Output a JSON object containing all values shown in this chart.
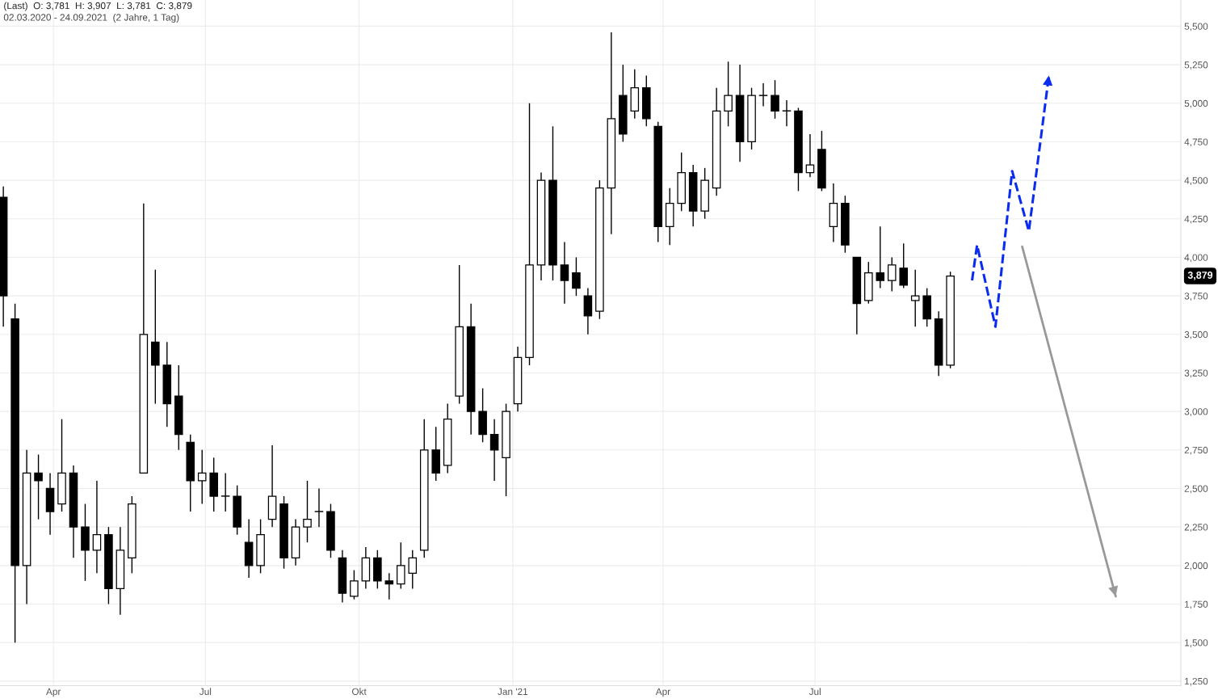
{
  "chart_data": {
    "type": "candlestick",
    "title": "(Last)  O: 3,781  H: 3,907  L: 3,781  C: 3,879",
    "subtitle": "02.03.2020 - 24.09.2021  (2 Jahre, 1 Tag)",
    "x": [
      "2020-03-02",
      "2020-03-09",
      "2020-03-16",
      "2020-03-23",
      "2020-03-30",
      "2020-04-06",
      "2020-04-13",
      "2020-04-20",
      "2020-04-27",
      "2020-05-04",
      "2020-05-11",
      "2020-05-18",
      "2020-05-25",
      "2020-06-01",
      "2020-06-08",
      "2020-06-15",
      "2020-06-22",
      "2020-06-29",
      "2020-07-06",
      "2020-07-13",
      "2020-07-20",
      "2020-07-27",
      "2020-08-03",
      "2020-08-10",
      "2020-08-17",
      "2020-08-24",
      "2020-08-31",
      "2020-09-07",
      "2020-09-14",
      "2020-09-21",
      "2020-09-28",
      "2020-10-05",
      "2020-10-12",
      "2020-10-19",
      "2020-10-26",
      "2020-11-02",
      "2020-11-09",
      "2020-11-16",
      "2020-11-23",
      "2020-11-30",
      "2020-12-07",
      "2020-12-14",
      "2020-12-21",
      "2020-12-28",
      "2021-01-04",
      "2021-01-11",
      "2021-01-18",
      "2021-01-25",
      "2021-02-01",
      "2021-02-08",
      "2021-02-15",
      "2021-02-22",
      "2021-03-01",
      "2021-03-08",
      "2021-03-15",
      "2021-03-22",
      "2021-03-29",
      "2021-04-05",
      "2021-04-12",
      "2021-04-19",
      "2021-04-26",
      "2021-05-03",
      "2021-05-10",
      "2021-05-17",
      "2021-05-24",
      "2021-05-31",
      "2021-06-07",
      "2021-06-14",
      "2021-06-21",
      "2021-06-28",
      "2021-07-05",
      "2021-07-12",
      "2021-07-19",
      "2021-07-26",
      "2021-08-02",
      "2021-08-09",
      "2021-08-16",
      "2021-08-23",
      "2021-08-30",
      "2021-09-06",
      "2021-09-13",
      "2021-09-20"
    ],
    "ohlc": [
      [
        4390,
        4460,
        3550,
        3750
      ],
      [
        3600,
        3700,
        1500,
        2000
      ],
      [
        2000,
        2750,
        1750,
        2600
      ],
      [
        2600,
        2720,
        2300,
        2550
      ],
      [
        2500,
        2600,
        2200,
        2350
      ],
      [
        2400,
        2950,
        2350,
        2600
      ],
      [
        2600,
        2650,
        2050,
        2250
      ],
      [
        2250,
        2400,
        1900,
        2100
      ],
      [
        2100,
        2550,
        1950,
        2200
      ],
      [
        2200,
        2250,
        1750,
        1850
      ],
      [
        1850,
        2250,
        1680,
        2100
      ],
      [
        2050,
        2450,
        1950,
        2400
      ],
      [
        2600,
        4350,
        2600,
        3500
      ],
      [
        3450,
        3920,
        3050,
        3300
      ],
      [
        3300,
        3450,
        2900,
        3050
      ],
      [
        3100,
        3300,
        2750,
        2850
      ],
      [
        2800,
        2850,
        2350,
        2550
      ],
      [
        2550,
        2750,
        2400,
        2600
      ],
      [
        2600,
        2700,
        2350,
        2450
      ],
      [
        2450,
        2600,
        2350,
        2450
      ],
      [
        2450,
        2520,
        2200,
        2250
      ],
      [
        2150,
        2300,
        1920,
        2000
      ],
      [
        2000,
        2300,
        1950,
        2200
      ],
      [
        2300,
        2780,
        2250,
        2450
      ],
      [
        2400,
        2450,
        1980,
        2050
      ],
      [
        2050,
        2300,
        2000,
        2250
      ],
      [
        2250,
        2550,
        2150,
        2300
      ],
      [
        2350,
        2500,
        2250,
        2350
      ],
      [
        2350,
        2400,
        2050,
        2100
      ],
      [
        2050,
        2100,
        1760,
        1820
      ],
      [
        1800,
        1970,
        1780,
        1900
      ],
      [
        1900,
        2120,
        1850,
        2050
      ],
      [
        2050,
        2100,
        1850,
        1900
      ],
      [
        1900,
        1950,
        1780,
        1880
      ],
      [
        1880,
        2150,
        1850,
        2000
      ],
      [
        1950,
        2100,
        1850,
        2050
      ],
      [
        2100,
        2950,
        2050,
        2750
      ],
      [
        2750,
        2900,
        2550,
        2600
      ],
      [
        2650,
        3050,
        2600,
        2950
      ],
      [
        3100,
        3950,
        3050,
        3550
      ],
      [
        3550,
        3700,
        2850,
        3000
      ],
      [
        3000,
        3150,
        2800,
        2850
      ],
      [
        2850,
        2950,
        2550,
        2750
      ],
      [
        2700,
        3050,
        2450,
        3000
      ],
      [
        3050,
        3420,
        3000,
        3350
      ],
      [
        3350,
        5000,
        3300,
        3950
      ],
      [
        3950,
        4550,
        3850,
        4500
      ],
      [
        4500,
        4850,
        3850,
        3950
      ],
      [
        3950,
        4100,
        3700,
        3850
      ],
      [
        3900,
        4000,
        3750,
        3800
      ],
      [
        3750,
        3800,
        3500,
        3620
      ],
      [
        3650,
        4500,
        3600,
        4450
      ],
      [
        4450,
        5460,
        4150,
        4900
      ],
      [
        5050,
        5250,
        4750,
        4800
      ],
      [
        4950,
        5220,
        4900,
        5100
      ],
      [
        5100,
        5180,
        4850,
        4900
      ],
      [
        4850,
        4880,
        4100,
        4200
      ],
      [
        4200,
        4450,
        4080,
        4350
      ],
      [
        4350,
        4680,
        4300,
        4550
      ],
      [
        4550,
        4600,
        4200,
        4300
      ],
      [
        4300,
        4580,
        4250,
        4500
      ],
      [
        4450,
        5100,
        4400,
        4950
      ],
      [
        4950,
        5270,
        4850,
        5050
      ],
      [
        5050,
        5250,
        4620,
        4750
      ],
      [
        4750,
        5100,
        4700,
        5050
      ],
      [
        5050,
        5130,
        4980,
        5050
      ],
      [
        5050,
        5150,
        4900,
        4950
      ],
      [
        4950,
        5020,
        4850,
        4950
      ],
      [
        4950,
        4970,
        4430,
        4550
      ],
      [
        4550,
        4800,
        4520,
        4600
      ],
      [
        4700,
        4820,
        4430,
        4450
      ],
      [
        4200,
        4480,
        4100,
        4350
      ],
      [
        4350,
        4400,
        4030,
        4080
      ],
      [
        4000,
        4000,
        3500,
        3700
      ],
      [
        3720,
        3970,
        3700,
        3900
      ],
      [
        3900,
        4200,
        3800,
        3850
      ],
      [
        3850,
        4000,
        3780,
        3950
      ],
      [
        3930,
        4090,
        3800,
        3820
      ],
      [
        3720,
        3920,
        3550,
        3750
      ],
      [
        3750,
        3800,
        3550,
        3600
      ],
      [
        3600,
        3650,
        3230,
        3300
      ],
      [
        3300,
        3907,
        3280,
        3879
      ]
    ],
    "series": [
      {
        "type": "line",
        "color": "#0a2cf0",
        "line_style": "dashed",
        "x": [
          "2021-10-03",
          "2021-10-06",
          "2021-10-17",
          "2021-10-27",
          "2021-11-06",
          "2021-11-18"
        ],
        "values": [
          3850,
          4080,
          3550,
          4560,
          4170,
          5180
        ]
      },
      {
        "type": "line",
        "color": "#999999",
        "line_style": "solid",
        "x": [
          "2021-11-02",
          "2021-12-28"
        ],
        "values": [
          4070,
          1800
        ]
      }
    ],
    "annotations": [
      "3,879"
    ],
    "xlim": [
      "2020-02-29",
      "2022-02-05"
    ],
    "xticks": [
      {
        "value": "2020-04-01",
        "label": "Apr"
      },
      {
        "value": "2020-07-01",
        "label": "Jul"
      },
      {
        "value": "2020-10-01",
        "label": "Okt"
      },
      {
        "value": "2021-01-01",
        "label": "Jan '21"
      },
      {
        "value": "2021-04-01",
        "label": "Apr"
      },
      {
        "value": "2021-07-01",
        "label": "Jul"
      }
    ],
    "ylim": [
      1220,
      5670
    ],
    "yticks": [
      {
        "value": 1250,
        "label": "1,250"
      },
      {
        "value": 1500,
        "label": "1,500"
      },
      {
        "value": 1750,
        "label": "1,750"
      },
      {
        "value": 2000,
        "label": "2,000"
      },
      {
        "value": 2250,
        "label": "2,250"
      },
      {
        "value": 2500,
        "label": "2,500"
      },
      {
        "value": 2750,
        "label": "2,750"
      },
      {
        "value": 3000,
        "label": "3,000"
      },
      {
        "value": 3250,
        "label": "3,250"
      },
      {
        "value": 3500,
        "label": "3,500"
      },
      {
        "value": 3750,
        "label": "3,750"
      },
      {
        "value": 4000,
        "label": "4,000"
      },
      {
        "value": 4250,
        "label": "4,250"
      },
      {
        "value": 4500,
        "label": "4,500"
      },
      {
        "value": 4750,
        "label": "4,750"
      },
      {
        "value": 5000,
        "label": "5,000"
      },
      {
        "value": 5250,
        "label": "5,250"
      },
      {
        "value": 5500,
        "label": "5,500"
      }
    ],
    "grid": true
  }
}
